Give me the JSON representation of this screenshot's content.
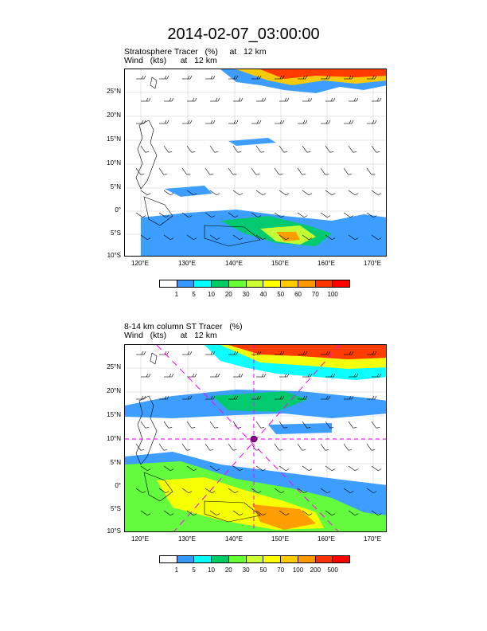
{
  "title": "2014-02-07_03:00:00",
  "panels": [
    {
      "subtitle1": "Stratosphere Tracer   (%)     at   12 km",
      "subtitle2": "Wind   (kts)      at   12 km",
      "lat_labels": [
        "25°N",
        "20°N",
        "15°N",
        "10°N",
        "5°N",
        "0°",
        "5°S",
        "10°S"
      ],
      "lon_labels": [
        "120°E",
        "130°E",
        "140°E",
        "150°E",
        "160°E",
        "170°E"
      ],
      "colorbar_labels": [
        "1",
        "5",
        "10",
        "20",
        "30",
        "40",
        "50",
        "60",
        "70",
        "100"
      ],
      "colors": [
        "#ffffff",
        "#3399ff",
        "#00ffff",
        "#00cc66",
        "#66ff33",
        "#ccff33",
        "#ffff00",
        "#ffcc00",
        "#ff9900",
        "#ff3300",
        "#ff0000"
      ]
    },
    {
      "subtitle1": "8-14 km column ST Tracer   (%)",
      "subtitle2": "Wind   (kts)      at   12 km",
      "lat_labels": [
        "25°N",
        "20°N",
        "15°N",
        "10°N",
        "5°N",
        "0°",
        "5°S",
        "10°S"
      ],
      "lon_labels": [
        "120°E",
        "130°E",
        "140°E",
        "150°E",
        "160°E",
        "170°E"
      ],
      "colorbar_labels": [
        "1",
        "5",
        "10",
        "20",
        "30",
        "50",
        "70",
        "100",
        "200",
        "500"
      ],
      "colors": [
        "#ffffff",
        "#3399ff",
        "#00ffff",
        "#00cc66",
        "#66ff33",
        "#ccff33",
        "#ffff00",
        "#ffcc00",
        "#ff9900",
        "#ff3300",
        "#ff0000"
      ]
    }
  ]
}
